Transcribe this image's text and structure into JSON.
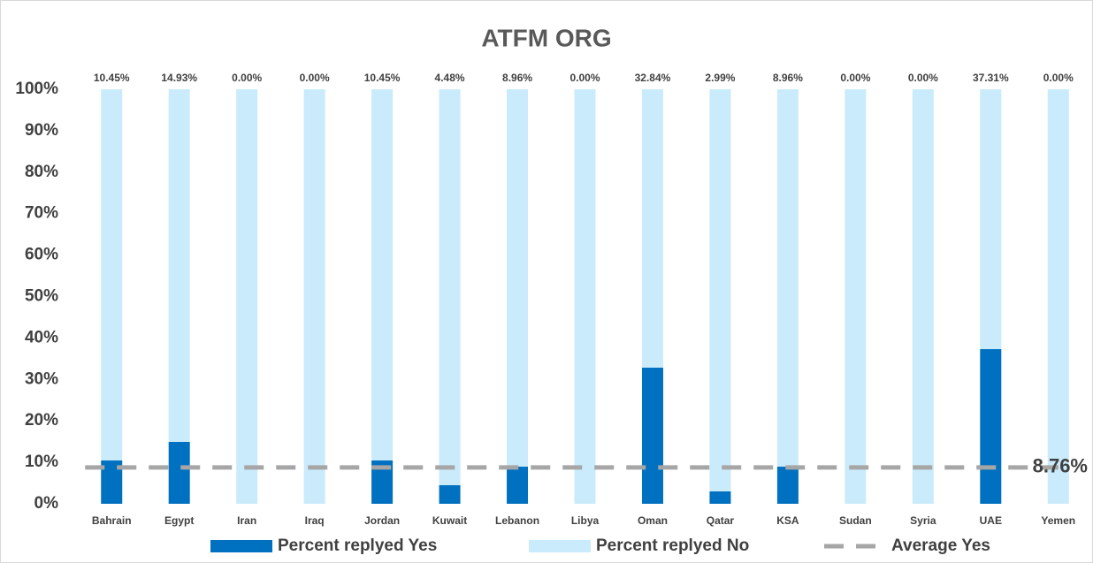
{
  "chart_data": {
    "type": "stacked_bar",
    "title": "ATFM ORG",
    "categories": [
      "Bahrain",
      "Egypt",
      "Iran",
      "Iraq",
      "Jordan",
      "Kuwait",
      "Lebanon",
      "Libya",
      "Oman",
      "Qatar",
      "KSA",
      "Sudan",
      "Syria",
      "UAE",
      "Yemen"
    ],
    "series": [
      {
        "name": "Percent replyed Yes",
        "color": "#0070c0",
        "values": [
          10.45,
          14.93,
          0,
          0,
          10.45,
          4.48,
          8.96,
          0,
          32.84,
          2.99,
          8.96,
          0,
          0,
          37.31,
          0
        ],
        "value_labels": [
          "10.45%",
          "14.93%",
          "0.00%",
          "0.00%",
          "10.45%",
          "4.48%",
          "8.96%",
          "0.00%",
          "32.84%",
          "2.99%",
          "8.96%",
          "0.00%",
          "0.00%",
          "37.31%",
          "0.00%"
        ]
      },
      {
        "name": "Percent replyed No",
        "color": "#c9ebfb",
        "values": [
          89.55,
          85.07,
          100,
          100,
          89.55,
          95.52,
          91.04,
          100,
          67.16,
          97.01,
          91.04,
          100,
          100,
          62.69,
          100
        ]
      },
      {
        "name": "Average Yes",
        "color": "#a6a6a6",
        "type": "line",
        "values": [
          8.76,
          8.76,
          8.76,
          8.76,
          8.76,
          8.76,
          8.76,
          8.76,
          8.76,
          8.76,
          8.76,
          8.76,
          8.76,
          8.76,
          8.76
        ],
        "value_labels": [
          null,
          null,
          null,
          null,
          null,
          null,
          null,
          null,
          null,
          null,
          null,
          null,
          null,
          null,
          "8.76%"
        ]
      }
    ],
    "ylim": [
      0,
      100
    ],
    "yticks": [
      {
        "value": 0,
        "label": "0%"
      },
      {
        "value": 10,
        "label": "10%"
      },
      {
        "value": 20,
        "label": "20%"
      },
      {
        "value": 30,
        "label": "30%"
      },
      {
        "value": 40,
        "label": "40%"
      },
      {
        "value": 50,
        "label": "50%"
      },
      {
        "value": 60,
        "label": "60%"
      },
      {
        "value": 70,
        "label": "70%"
      },
      {
        "value": 80,
        "label": "80%"
      },
      {
        "value": 90,
        "label": "90%"
      },
      {
        "value": 100,
        "label": "100%"
      }
    ],
    "legend": "bottom"
  }
}
